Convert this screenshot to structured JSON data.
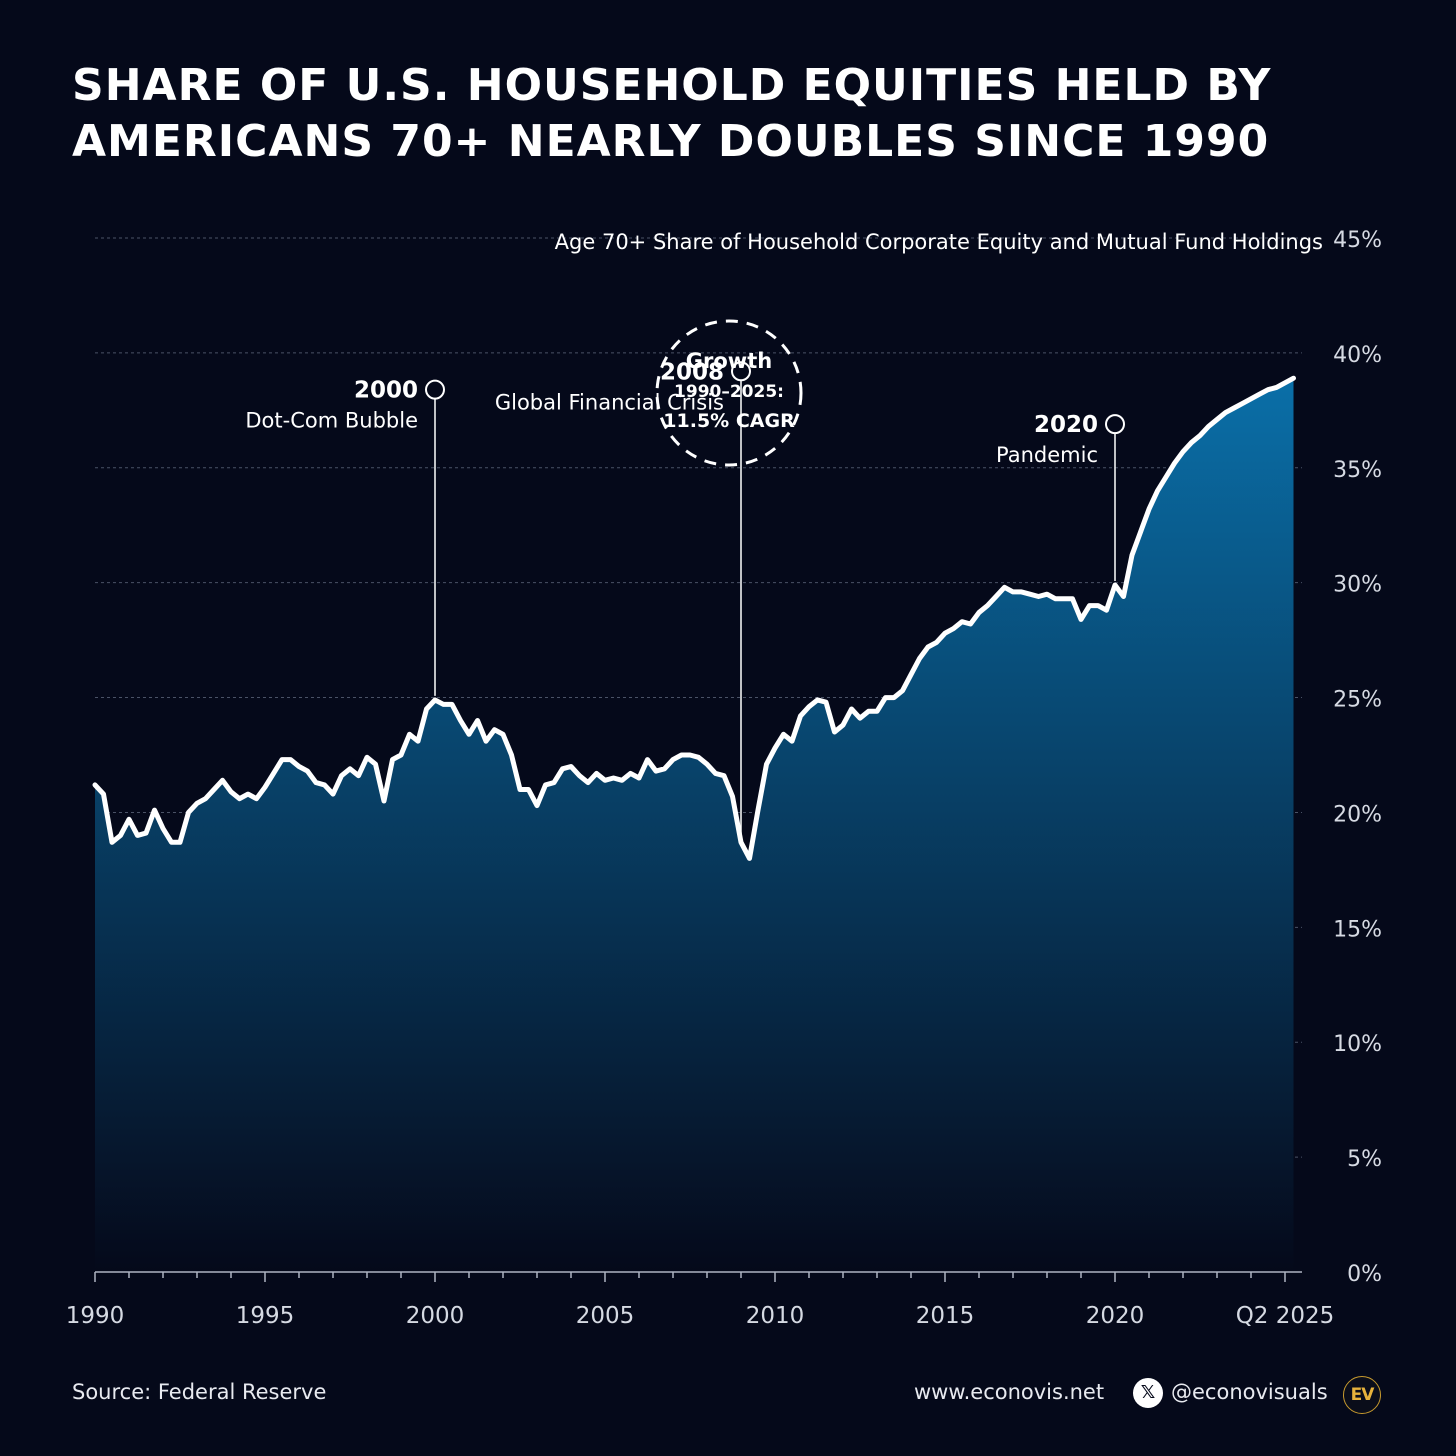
{
  "title": {
    "line1": "SHARE OF U.S. HOUSEHOLD EQUITIES HELD BY",
    "line2": "AMERICANS 70+ NEARLY DOUBLES SINCE 1990"
  },
  "colors": {
    "background": "#05091a",
    "line": "#ffffff",
    "area_top": "#0a6fa8",
    "area_bottom": "#05091a",
    "gridline": "#4a5266"
  },
  "chart_data": {
    "type": "area",
    "subtitle": "Age 70+ Share of Household Corporate Equity and Mutual Fund Holdings",
    "x_tick_labels": [
      "1990",
      "1995",
      "2000",
      "2005",
      "2010",
      "2015",
      "2020",
      "Q2 2025"
    ],
    "y_tick_labels": [
      "0%",
      "5%",
      "10%",
      "15%",
      "20%",
      "25%",
      "30%",
      "35%",
      "40%",
      "45%"
    ],
    "xlim": [
      1990,
      2025.5
    ],
    "ylim": [
      0,
      45
    ],
    "grid": true,
    "series": [
      {
        "x": [
          1990.0,
          1990.25,
          1990.5,
          1990.75,
          1991.0,
          1991.25,
          1991.5,
          1991.75,
          1992.0,
          1992.25,
          1992.5,
          1992.75,
          1993.0,
          1993.25,
          1993.5,
          1993.75,
          1994.0,
          1994.25,
          1994.5,
          1994.75,
          1995.0,
          1995.25,
          1995.5,
          1995.75,
          1996.0,
          1996.25,
          1996.5,
          1996.75,
          1997.0,
          1997.25,
          1997.5,
          1997.75,
          1998.0,
          1998.25,
          1998.5,
          1998.75,
          1999.0,
          1999.25,
          1999.5,
          1999.75,
          2000.0,
          2000.25,
          2000.5,
          2000.75,
          2001.0,
          2001.25,
          2001.5,
          2001.75,
          2002.0,
          2002.25,
          2002.5,
          2002.75,
          2003.0,
          2003.25,
          2003.5,
          2003.75,
          2004.0,
          2004.25,
          2004.5,
          2004.75,
          2005.0,
          2005.25,
          2005.5,
          2005.75,
          2006.0,
          2006.25,
          2006.5,
          2006.75,
          2007.0,
          2007.25,
          2007.5,
          2007.75,
          2008.0,
          2008.25,
          2008.5,
          2008.75,
          2009.0,
          2009.25,
          2009.5,
          2009.75,
          2010.0,
          2010.25,
          2010.5,
          2010.75,
          2011.0,
          2011.25,
          2011.5,
          2011.75,
          2012.0,
          2012.25,
          2012.5,
          2012.75,
          2013.0,
          2013.25,
          2013.5,
          2013.75,
          2014.0,
          2014.25,
          2014.5,
          2014.75,
          2015.0,
          2015.25,
          2015.5,
          2015.75,
          2016.0,
          2016.25,
          2016.5,
          2016.75,
          2017.0,
          2017.25,
          2017.5,
          2017.75,
          2018.0,
          2018.25,
          2018.5,
          2018.75,
          2019.0,
          2019.25,
          2019.5,
          2019.75,
          2020.0,
          2020.25,
          2020.5,
          2020.75,
          2021.0,
          2021.25,
          2021.5,
          2021.75,
          2022.0,
          2022.25,
          2022.5,
          2022.75,
          2023.0,
          2023.25,
          2023.5,
          2023.75,
          2024.0,
          2024.25,
          2024.5,
          2024.75,
          2025.0,
          2025.25
        ],
        "values": [
          21.2,
          20.8,
          18.7,
          19.0,
          19.7,
          19.0,
          19.1,
          20.1,
          19.3,
          18.7,
          18.7,
          20.0,
          20.4,
          20.6,
          21.0,
          21.4,
          20.9,
          20.6,
          20.8,
          20.6,
          21.1,
          21.7,
          22.3,
          22.3,
          22.0,
          21.8,
          21.3,
          21.2,
          20.8,
          21.6,
          21.9,
          21.6,
          22.4,
          22.1,
          20.5,
          22.3,
          22.5,
          23.4,
          23.1,
          24.5,
          24.9,
          24.7,
          24.7,
          24.0,
          23.4,
          24.0,
          23.1,
          23.6,
          23.4,
          22.5,
          21.0,
          21.0,
          20.3,
          21.2,
          21.3,
          21.9,
          22.0,
          21.6,
          21.3,
          21.7,
          21.4,
          21.5,
          21.4,
          21.7,
          21.5,
          22.3,
          21.8,
          21.9,
          22.3,
          22.5,
          22.5,
          22.4,
          22.1,
          21.7,
          21.6,
          20.7,
          18.7,
          18.0,
          20.1,
          22.1,
          22.8,
          23.4,
          23.1,
          24.2,
          24.6,
          24.9,
          24.8,
          23.5,
          23.8,
          24.5,
          24.1,
          24.4,
          24.4,
          25.0,
          25.0,
          25.3,
          26.0,
          26.7,
          27.2,
          27.4,
          27.8,
          28.0,
          28.3,
          28.2,
          28.7,
          29.0,
          29.4,
          29.8,
          29.6,
          29.6,
          29.5,
          29.4,
          29.5,
          29.3,
          29.3,
          29.3,
          28.4,
          29.0,
          29.0,
          28.8,
          29.9,
          29.4,
          31.2,
          32.2,
          33.2,
          34.0,
          34.6,
          35.2,
          35.7,
          36.1,
          36.4,
          36.8,
          37.1,
          37.4,
          37.6,
          37.8,
          38.0,
          38.2,
          38.4,
          38.5,
          38.7,
          38.9
        ]
      }
    ],
    "annotations": [
      {
        "year_label": "2000",
        "label": "Dot-Com Bubble",
        "x": 2000.0
      },
      {
        "year_label": "2008",
        "label": "Global Financial Crisis",
        "x": 2009.0
      },
      {
        "year_label": "2020",
        "label": "Pandemic",
        "x": 2020.0
      }
    ],
    "growth_callout": {
      "line1": "Growth",
      "line2": "1990–2025:",
      "line3": "11.5% CAGR"
    }
  },
  "footer": {
    "source": "Source: Federal Reserve",
    "website": "www.econovis.net",
    "x_icon": "x-logo-icon",
    "handle": "@econovisuals",
    "logo_text": "EV"
  }
}
